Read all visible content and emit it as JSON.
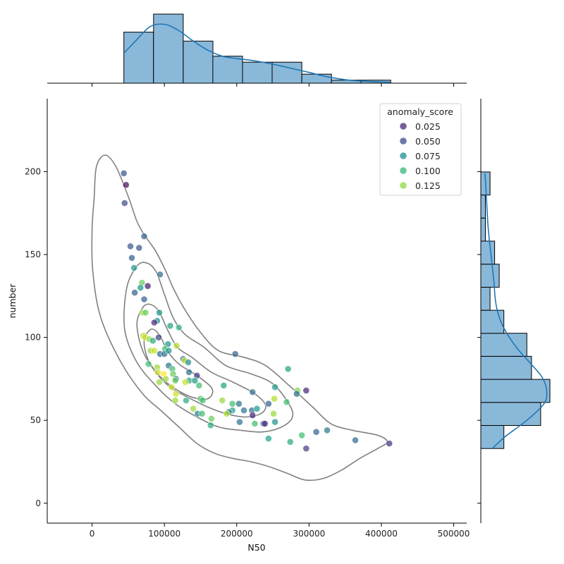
{
  "chart_data": {
    "type": "scatter",
    "xlabel": "N50",
    "ylabel": "number",
    "xlim": [
      -62000,
      518000
    ],
    "ylim": [
      -12,
      244
    ],
    "xticks": [
      0,
      100000,
      200000,
      300000,
      400000,
      500000
    ],
    "yticks": [
      0,
      50,
      100,
      150,
      200
    ],
    "legend": {
      "title": "anomaly_score",
      "placement": "top-right",
      "entries": [
        {
          "label": "0.025",
          "color": "#482878"
        },
        {
          "label": "0.050",
          "color": "#3e4a89"
        },
        {
          "label": "0.075",
          "color": "#21908d"
        },
        {
          "label": "0.100",
          "color": "#35b779"
        },
        {
          "label": "0.125",
          "color": "#8fd744"
        }
      ]
    },
    "hue_domain": [
      0.01,
      0.14
    ],
    "points": [
      {
        "x": 47000,
        "y": 192,
        "c": 0.015
      },
      {
        "x": 44000,
        "y": 199,
        "c": 0.045
      },
      {
        "x": 45000,
        "y": 181,
        "c": 0.04
      },
      {
        "x": 53000,
        "y": 155,
        "c": 0.045
      },
      {
        "x": 65000,
        "y": 154,
        "c": 0.045
      },
      {
        "x": 72000,
        "y": 161,
        "c": 0.05
      },
      {
        "x": 55000,
        "y": 148,
        "c": 0.05
      },
      {
        "x": 58000,
        "y": 142,
        "c": 0.08
      },
      {
        "x": 94000,
        "y": 138,
        "c": 0.055
      },
      {
        "x": 69000,
        "y": 133,
        "c": 0.11
      },
      {
        "x": 67000,
        "y": 130,
        "c": 0.08
      },
      {
        "x": 77000,
        "y": 131,
        "c": 0.02
      },
      {
        "x": 59000,
        "y": 127,
        "c": 0.05
      },
      {
        "x": 72000,
        "y": 123,
        "c": 0.05
      },
      {
        "x": 70000,
        "y": 115,
        "c": 0.12
      },
      {
        "x": 74000,
        "y": 115,
        "c": 0.11
      },
      {
        "x": 93000,
        "y": 115,
        "c": 0.08
      },
      {
        "x": 90000,
        "y": 110,
        "c": 0.075
      },
      {
        "x": 86000,
        "y": 109,
        "c": 0.025
      },
      {
        "x": 108000,
        "y": 107,
        "c": 0.085
      },
      {
        "x": 120000,
        "y": 106,
        "c": 0.095
      },
      {
        "x": 71000,
        "y": 101,
        "c": 0.125
      },
      {
        "x": 73000,
        "y": 100,
        "c": 0.13
      },
      {
        "x": 79000,
        "y": 99,
        "c": 0.12
      },
      {
        "x": 84000,
        "y": 98,
        "c": 0.09
      },
      {
        "x": 92000,
        "y": 100,
        "c": 0.035
      },
      {
        "x": 105000,
        "y": 96,
        "c": 0.08
      },
      {
        "x": 117000,
        "y": 95,
        "c": 0.125
      },
      {
        "x": 101000,
        "y": 93,
        "c": 0.1
      },
      {
        "x": 81000,
        "y": 92,
        "c": 0.12
      },
      {
        "x": 86000,
        "y": 92,
        "c": 0.13
      },
      {
        "x": 94000,
        "y": 90,
        "c": 0.055
      },
      {
        "x": 100000,
        "y": 90,
        "c": 0.06
      },
      {
        "x": 106000,
        "y": 92,
        "c": 0.08
      },
      {
        "x": 198000,
        "y": 90,
        "c": 0.05
      },
      {
        "x": 126000,
        "y": 87,
        "c": 0.06
      },
      {
        "x": 128000,
        "y": 86,
        "c": 0.13
      },
      {
        "x": 133000,
        "y": 85,
        "c": 0.075
      },
      {
        "x": 78000,
        "y": 84,
        "c": 0.1
      },
      {
        "x": 106000,
        "y": 83,
        "c": 0.06
      },
      {
        "x": 90000,
        "y": 82,
        "c": 0.12
      },
      {
        "x": 111000,
        "y": 81,
        "c": 0.1
      },
      {
        "x": 271000,
        "y": 81,
        "c": 0.085
      },
      {
        "x": 91000,
        "y": 79,
        "c": 0.13
      },
      {
        "x": 99000,
        "y": 78,
        "c": 0.14
      },
      {
        "x": 134000,
        "y": 79,
        "c": 0.06
      },
      {
        "x": 112000,
        "y": 78,
        "c": 0.11
      },
      {
        "x": 145000,
        "y": 77,
        "c": 0.035
      },
      {
        "x": 102000,
        "y": 75,
        "c": 0.12
      },
      {
        "x": 116000,
        "y": 75,
        "c": 0.065
      },
      {
        "x": 115000,
        "y": 74,
        "c": 0.11
      },
      {
        "x": 134000,
        "y": 74,
        "c": 0.085
      },
      {
        "x": 142000,
        "y": 74,
        "c": 0.08
      },
      {
        "x": 93000,
        "y": 73,
        "c": 0.12
      },
      {
        "x": 129000,
        "y": 73,
        "c": 0.13
      },
      {
        "x": 148000,
        "y": 71,
        "c": 0.1
      },
      {
        "x": 182000,
        "y": 71,
        "c": 0.085
      },
      {
        "x": 110000,
        "y": 70,
        "c": 0.13
      },
      {
        "x": 253000,
        "y": 70,
        "c": 0.08
      },
      {
        "x": 284000,
        "y": 68,
        "c": 0.115
      },
      {
        "x": 296000,
        "y": 68,
        "c": 0.025
      },
      {
        "x": 283000,
        "y": 66,
        "c": 0.055
      },
      {
        "x": 222000,
        "y": 67,
        "c": 0.06
      },
      {
        "x": 116000,
        "y": 66,
        "c": 0.13
      },
      {
        "x": 252000,
        "y": 63,
        "c": 0.125
      },
      {
        "x": 115000,
        "y": 62,
        "c": 0.12
      },
      {
        "x": 130000,
        "y": 62,
        "c": 0.09
      },
      {
        "x": 150000,
        "y": 63,
        "c": 0.105
      },
      {
        "x": 153000,
        "y": 62,
        "c": 0.1
      },
      {
        "x": 180000,
        "y": 62,
        "c": 0.12
      },
      {
        "x": 269000,
        "y": 61,
        "c": 0.1
      },
      {
        "x": 203000,
        "y": 60,
        "c": 0.06
      },
      {
        "x": 194000,
        "y": 60,
        "c": 0.1
      },
      {
        "x": 244000,
        "y": 60,
        "c": 0.05
      },
      {
        "x": 140000,
        "y": 57,
        "c": 0.12
      },
      {
        "x": 210000,
        "y": 56,
        "c": 0.06
      },
      {
        "x": 221000,
        "y": 56,
        "c": 0.06
      },
      {
        "x": 194000,
        "y": 56,
        "c": 0.085
      },
      {
        "x": 189000,
        "y": 55,
        "c": 0.06
      },
      {
        "x": 228000,
        "y": 57,
        "c": 0.08
      },
      {
        "x": 186000,
        "y": 54,
        "c": 0.125
      },
      {
        "x": 146000,
        "y": 54,
        "c": 0.065
      },
      {
        "x": 152000,
        "y": 54,
        "c": 0.1
      },
      {
        "x": 222000,
        "y": 53,
        "c": 0.025
      },
      {
        "x": 251000,
        "y": 54,
        "c": 0.12
      },
      {
        "x": 165000,
        "y": 51,
        "c": 0.11
      },
      {
        "x": 204000,
        "y": 49,
        "c": 0.06
      },
      {
        "x": 225000,
        "y": 48,
        "c": 0.1
      },
      {
        "x": 237000,
        "y": 48,
        "c": 0.04
      },
      {
        "x": 239000,
        "y": 48,
        "c": 0.03
      },
      {
        "x": 253000,
        "y": 49,
        "c": 0.075
      },
      {
        "x": 164000,
        "y": 47,
        "c": 0.09
      },
      {
        "x": 310000,
        "y": 43,
        "c": 0.05
      },
      {
        "x": 325000,
        "y": 44,
        "c": 0.065
      },
      {
        "x": 290000,
        "y": 41,
        "c": 0.1
      },
      {
        "x": 244000,
        "y": 39,
        "c": 0.085
      },
      {
        "x": 274000,
        "y": 37,
        "c": 0.09
      },
      {
        "x": 364000,
        "y": 38,
        "c": 0.055
      },
      {
        "x": 411000,
        "y": 36,
        "c": 0.03
      },
      {
        "x": 296000,
        "y": 33,
        "c": 0.035
      }
    ],
    "kde_contours": [
      [
        [
          18000,
          210
        ],
        [
          33000,
          203
        ],
        [
          50000,
          185
        ],
        [
          62000,
          170
        ],
        [
          72000,
          162
        ],
        [
          88000,
          152
        ],
        [
          102000,
          140
        ],
        [
          112000,
          130
        ],
        [
          128000,
          117
        ],
        [
          150000,
          103
        ],
        [
          175000,
          92
        ],
        [
          210000,
          88
        ],
        [
          240000,
          83
        ],
        [
          275000,
          70
        ],
        [
          305000,
          58
        ],
        [
          330000,
          48
        ],
        [
          360000,
          44
        ],
        [
          395000,
          41
        ],
        [
          408000,
          37
        ],
        [
          395000,
          33
        ],
        [
          370000,
          27
        ],
        [
          345000,
          20
        ],
        [
          320000,
          15
        ],
        [
          295000,
          14
        ],
        [
          270000,
          18
        ],
        [
          245000,
          22
        ],
        [
          220000,
          25
        ],
        [
          195000,
          27
        ],
        [
          170000,
          30
        ],
        [
          145000,
          36
        ],
        [
          120000,
          46
        ],
        [
          95000,
          56
        ],
        [
          70000,
          66
        ],
        [
          40000,
          85
        ],
        [
          12000,
          112
        ],
        [
          1000,
          140
        ],
        [
          0,
          165
        ],
        [
          3000,
          185
        ],
        [
          6000,
          203
        ],
        [
          18000,
          210
        ]
      ],
      [
        [
          75000,
          145
        ],
        [
          88000,
          140
        ],
        [
          100000,
          126
        ],
        [
          112000,
          112
        ],
        [
          128000,
          102
        ],
        [
          155000,
          94
        ],
        [
          185000,
          83
        ],
        [
          220000,
          78
        ],
        [
          250000,
          72
        ],
        [
          272000,
          60
        ],
        [
          277000,
          52
        ],
        [
          262000,
          46
        ],
        [
          235000,
          43
        ],
        [
          205000,
          44
        ],
        [
          175000,
          46
        ],
        [
          145000,
          52
        ],
        [
          115000,
          60
        ],
        [
          90000,
          70
        ],
        [
          62000,
          85
        ],
        [
          45000,
          105
        ],
        [
          48000,
          130
        ],
        [
          62000,
          143
        ],
        [
          75000,
          145
        ]
      ],
      [
        [
          80000,
          120
        ],
        [
          92000,
          116
        ],
        [
          105000,
          104
        ],
        [
          118000,
          94
        ],
        [
          138000,
          88
        ],
        [
          165000,
          79
        ],
        [
          195000,
          73
        ],
        [
          225000,
          66
        ],
        [
          240000,
          59
        ],
        [
          233000,
          54
        ],
        [
          212000,
          52
        ],
        [
          185000,
          54
        ],
        [
          160000,
          58
        ],
        [
          132000,
          64
        ],
        [
          108000,
          70
        ],
        [
          88000,
          79
        ],
        [
          70000,
          92
        ],
        [
          62000,
          108
        ],
        [
          70000,
          118
        ],
        [
          80000,
          120
        ]
      ],
      [
        [
          82000,
          105
        ],
        [
          94000,
          101
        ],
        [
          104000,
          92
        ],
        [
          120000,
          84
        ],
        [
          145000,
          77
        ],
        [
          166000,
          69
        ],
        [
          160000,
          63
        ],
        [
          138000,
          64
        ],
        [
          115000,
          69
        ],
        [
          95000,
          76
        ],
        [
          78000,
          86
        ],
        [
          72000,
          98
        ],
        [
          82000,
          105
        ]
      ]
    ],
    "x_marginal_hist": {
      "bin_edges": [
        44000,
        85000,
        126000,
        167000,
        208000,
        249000,
        290000,
        331000,
        372000,
        413000
      ],
      "counts": [
        17,
        23,
        14,
        9,
        7,
        7,
        3,
        1,
        1
      ],
      "kde": [
        [
          44000,
          10
        ],
        [
          60000,
          14
        ],
        [
          80000,
          18.8
        ],
        [
          100000,
          19.6
        ],
        [
          120000,
          17.5
        ],
        [
          140000,
          14
        ],
        [
          160000,
          11
        ],
        [
          180000,
          9
        ],
        [
          200000,
          8.2
        ],
        [
          220000,
          7.6
        ],
        [
          240000,
          6.8
        ],
        [
          260000,
          5.8
        ],
        [
          280000,
          4.7
        ],
        [
          300000,
          3.6
        ],
        [
          320000,
          2.4
        ],
        [
          340000,
          1.5
        ],
        [
          360000,
          0.9
        ],
        [
          380000,
          0.6
        ],
        [
          400000,
          0.4
        ],
        [
          413000,
          0.3
        ]
      ]
    },
    "y_marginal_hist": {
      "bin_edges": [
        33,
        46.9,
        60.8,
        74.7,
        88.6,
        102.5,
        116.4,
        130.3,
        144.2,
        158.1,
        172,
        185.9,
        199.8
      ],
      "counts": [
        5,
        13,
        15,
        11,
        10,
        5,
        2,
        4,
        3,
        1,
        1,
        2
      ],
      "kde": [
        [
          33,
          2.5
        ],
        [
          40,
          5.2
        ],
        [
          50,
          10
        ],
        [
          60,
          13.7
        ],
        [
          68,
          14.3
        ],
        [
          76,
          13.3
        ],
        [
          84,
          10.9
        ],
        [
          92,
          8.3
        ],
        [
          100,
          6.2
        ],
        [
          108,
          4.6
        ],
        [
          116,
          3.6
        ],
        [
          124,
          3.1
        ],
        [
          132,
          2.9
        ],
        [
          140,
          2.6
        ],
        [
          150,
          2.2
        ],
        [
          160,
          1.8
        ],
        [
          170,
          1.5
        ],
        [
          180,
          1.3
        ],
        [
          190,
          1.1
        ],
        [
          199,
          0.9
        ]
      ]
    },
    "colors": {
      "hist_fill": "#8ab8d9",
      "hist_edge": "#000000",
      "kde_line": "#1f77b4",
      "contour": "#808080"
    }
  }
}
